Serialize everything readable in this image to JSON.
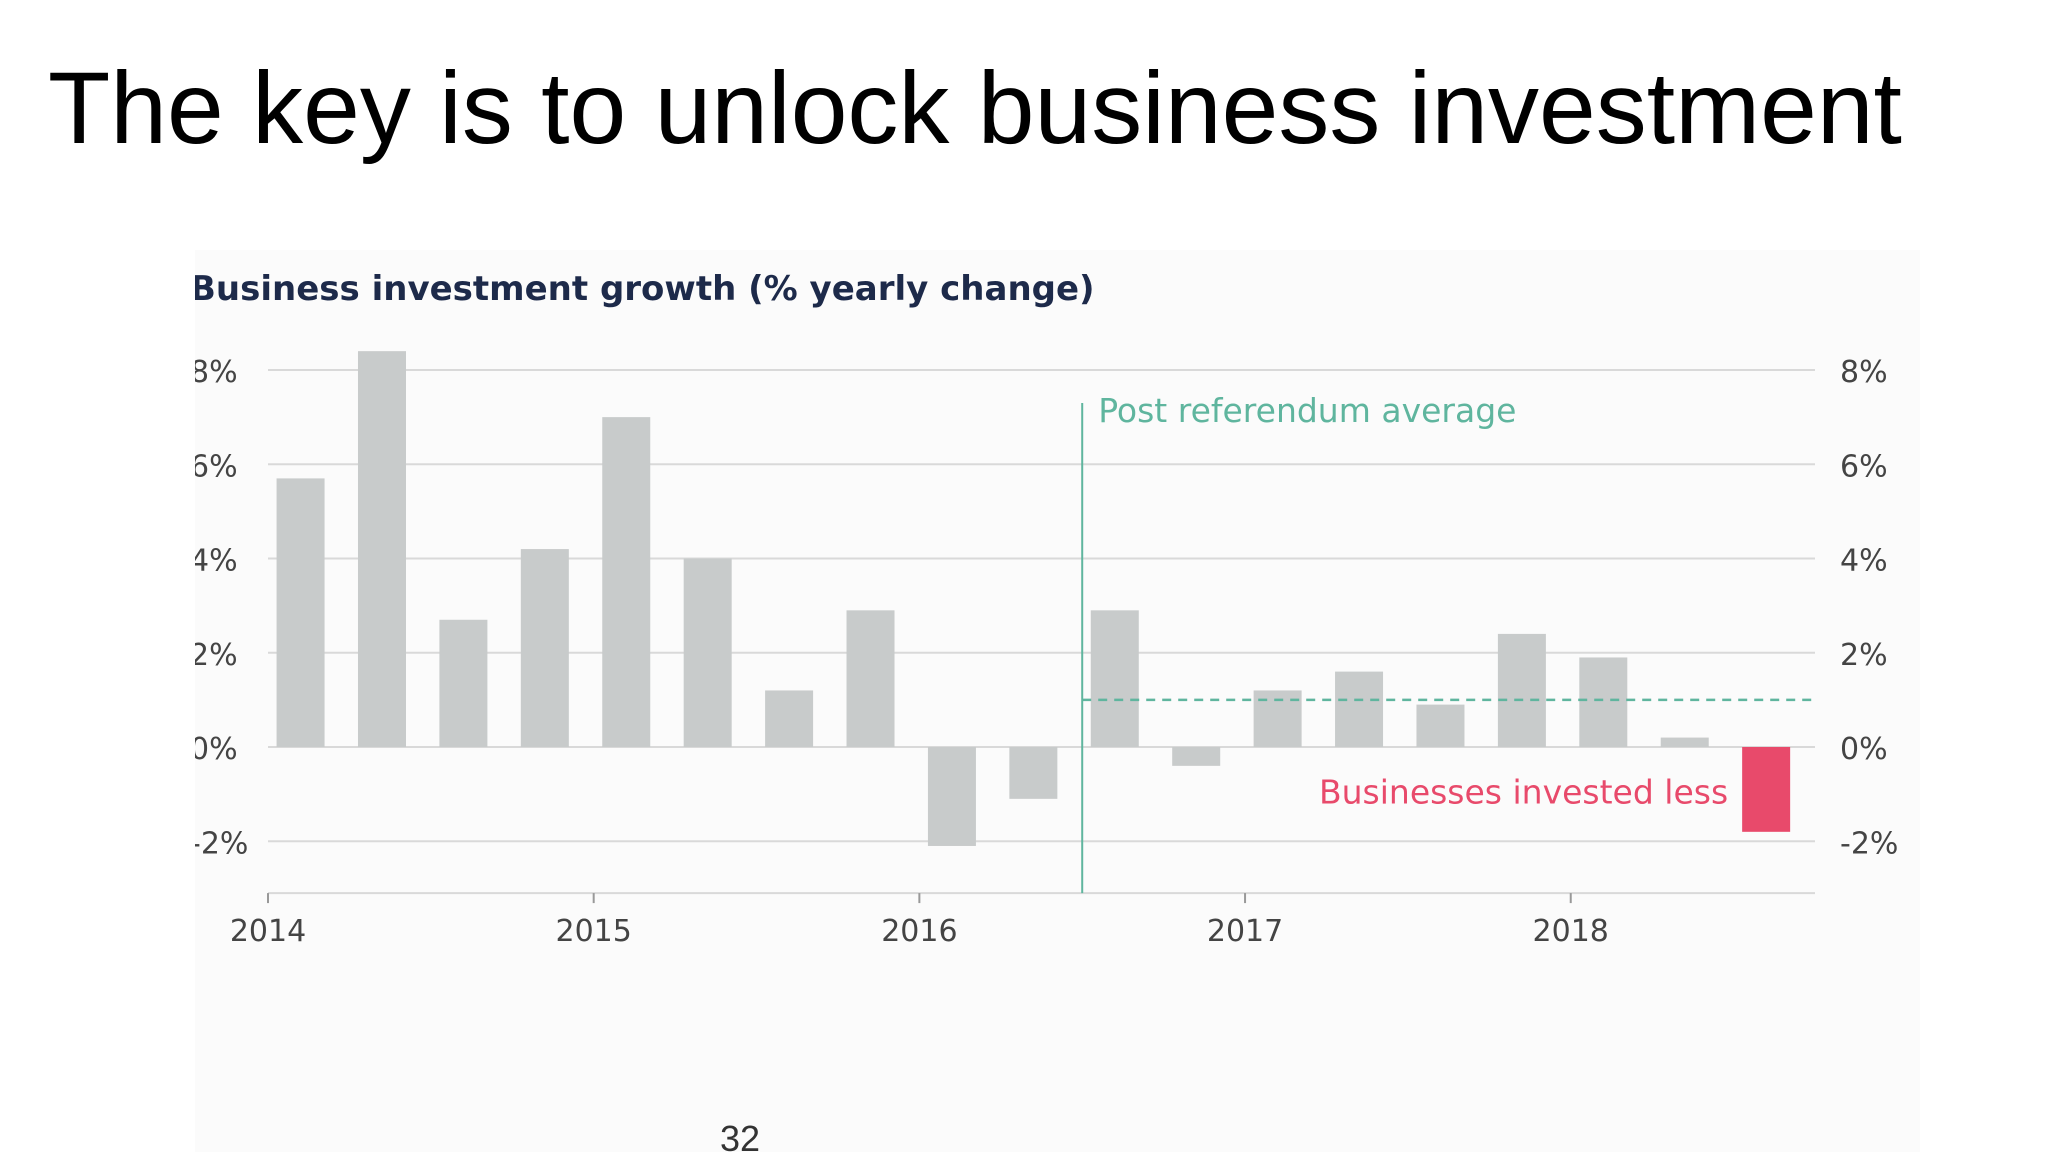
{
  "slide": {
    "title": "The key is to unlock business investment",
    "page_number": "32"
  },
  "chart_data": {
    "type": "bar",
    "title": "Business investment growth (% yearly change)",
    "xlabel": "",
    "ylabel": "",
    "x_ticks": [
      "2014",
      "2015",
      "2016",
      "2017",
      "2018"
    ],
    "y_ticks": [
      "8%",
      "6%",
      "4%",
      "2%",
      "0%",
      "-2%"
    ],
    "y_tick_values": [
      8,
      6,
      4,
      2,
      0,
      -2
    ],
    "ylim": [
      -3.1,
      8.4
    ],
    "xlim": [
      2014.0,
      2018.75
    ],
    "grid": true,
    "right_axis_labels": true,
    "x": [
      2014.1,
      2014.35,
      2014.6,
      2014.85,
      2015.1,
      2015.35,
      2015.6,
      2015.85,
      2016.1,
      2016.35,
      2016.6,
      2016.85,
      2017.1,
      2017.35,
      2017.6,
      2017.85,
      2018.1,
      2018.35,
      2018.6
    ],
    "values": [
      5.7,
      8.4,
      2.7,
      4.2,
      7.0,
      4.0,
      1.2,
      2.9,
      -2.1,
      -1.1,
      2.9,
      -0.4,
      1.2,
      1.6,
      0.9,
      2.4,
      1.9,
      0.2,
      -1.8
    ],
    "bar_colors": {
      "default": "#c8cbcb",
      "highlight": "#e84a6b"
    },
    "highlight_index": 18,
    "reference_line": {
      "x": 2016.5,
      "average_value": 1.0,
      "label": "Post referendum average",
      "color": "#5fb59e"
    },
    "annotation": {
      "label": "Businesses invested less",
      "color": "#e84a6b"
    },
    "colors": {
      "title": "#1d2a4a",
      "axis_text": "#444444",
      "grid": "#d9d9d9"
    }
  }
}
